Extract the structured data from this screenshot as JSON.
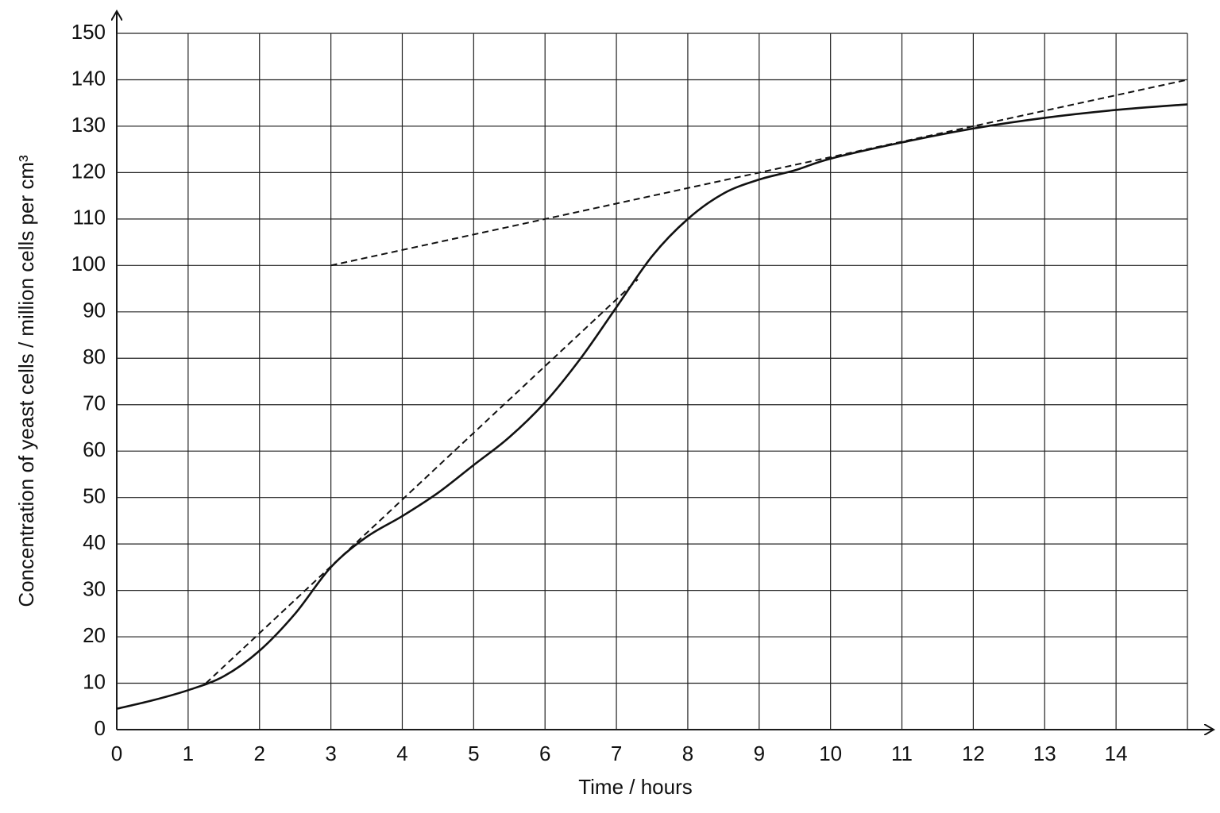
{
  "chart_data": {
    "type": "line",
    "x_label": "Time / hours",
    "y_label": "Concentration of yeast cells / million cells per cm³",
    "xlim": [
      0,
      15
    ],
    "xticks": [
      0,
      1,
      2,
      3,
      4,
      5,
      6,
      7,
      8,
      9,
      10,
      11,
      12,
      13,
      14
    ],
    "ylim": [
      0,
      150
    ],
    "yticks": [
      0,
      10,
      20,
      30,
      40,
      50,
      60,
      70,
      80,
      90,
      100,
      110,
      120,
      130,
      140,
      150
    ],
    "grid": true,
    "series": [
      {
        "color": "#111111",
        "style": "solid",
        "x": [
          0,
          0.5,
          1,
          1.5,
          2,
          2.5,
          3,
          3.5,
          4,
          4.5,
          5,
          5.5,
          6,
          6.5,
          7,
          7.5,
          8,
          8.5,
          9,
          9.5,
          10,
          11,
          12,
          13,
          14,
          15
        ],
        "values": [
          4.5,
          6.3,
          8.5,
          11.5,
          17,
          25,
          35,
          41.5,
          46,
          51,
          57,
          63,
          70.5,
          80,
          91,
          102,
          110,
          115.5,
          118.5,
          120.5,
          123,
          126.5,
          129.5,
          131.8,
          133.5,
          134.7
        ]
      },
      {
        "color": "#111111",
        "style": "dashed",
        "x": [
          1.25,
          7.3
        ],
        "values": [
          10,
          97
        ]
      },
      {
        "color": "#111111",
        "style": "dashed",
        "x": [
          3,
          15
        ],
        "values": [
          100,
          140
        ]
      }
    ]
  }
}
